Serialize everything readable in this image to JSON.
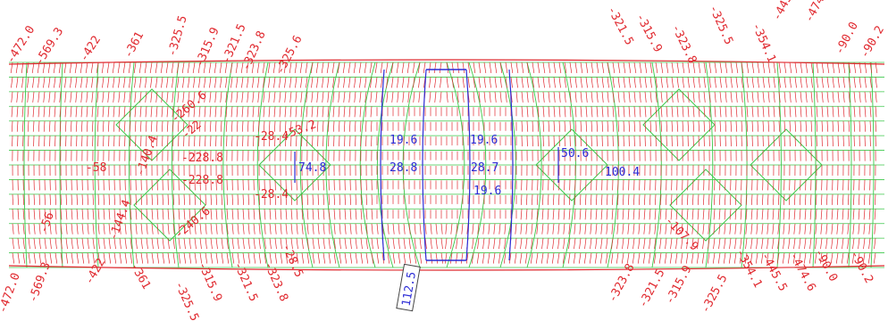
{
  "colors": {
    "tension_red": "#e0282e",
    "mesh_green": "#3cc84a",
    "value_blue": "#2b2bd6",
    "background": "#ffffff"
  },
  "labels_red": [
    "-472.0",
    "-569.3",
    "-422",
    "-361",
    "-325.5",
    "-315.9",
    "-321.5",
    "-323.8",
    "-325.6",
    "-321.5",
    "-315.9",
    "-323.8",
    "-325.5",
    "-354.1",
    "-445.5",
    "-474.6",
    "-90.0",
    "-90.2",
    "-228.8",
    "-228.8",
    "-58",
    "-22",
    "-260.6",
    "-28.4",
    "-28.4",
    "-53.2",
    "-472.0",
    "-569.3",
    "-422",
    "-361",
    "-325.5",
    "-315.9",
    "-321.5",
    "-323.8",
    "-28.5",
    "-107.9",
    "-323.8",
    "-321.5",
    "-315.9",
    "-325.5",
    "-354.1",
    "-445.5",
    "-474.6",
    "-90.0",
    "-90.2",
    "-240.6",
    "-140.4",
    "-144.4",
    "-56"
  ],
  "labels_blue": [
    "19.6",
    "19.6",
    "28.8",
    "28.7",
    "19.6",
    "74.8",
    "50.6",
    "100.4"
  ],
  "labels_boxed": [
    "112.5"
  ]
}
